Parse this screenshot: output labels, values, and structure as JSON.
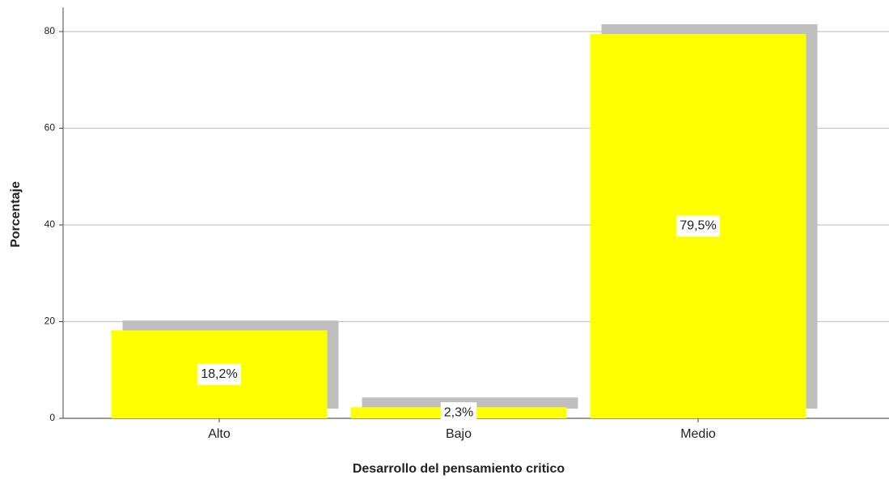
{
  "chart_data": {
    "type": "bar",
    "x_label": "Desarrollo del pensamiento critico",
    "y_label": "Porcentaje",
    "categories": [
      "Alto",
      "Bajo",
      "Medio"
    ],
    "values": [
      18.2,
      2.3,
      79.5
    ],
    "value_labels": [
      "18,2%",
      "2,3%",
      "79,5%"
    ],
    "color": "#ffff00",
    "shadow_color": "#bfbfbf",
    "ylim": [
      0,
      85
    ],
    "yticks": [
      0,
      20,
      40,
      60,
      80
    ],
    "grid": true
  }
}
